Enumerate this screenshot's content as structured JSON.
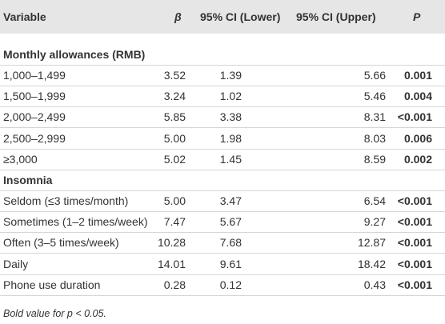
{
  "table": {
    "header": [
      "Variable",
      "β",
      "95% CI (Lower)",
      "95% CI (Upper)",
      "P"
    ],
    "sections": [
      {
        "title": "Monthly allowances (RMB)",
        "rows": [
          [
            "1,000–1,499",
            "3.52",
            "1.39",
            "5.66",
            "0.001"
          ],
          [
            "1,500–1,999",
            "3.24",
            "1.02",
            "5.46",
            "0.004"
          ],
          [
            "2,000–2,499",
            "5.85",
            "3.38",
            "8.31",
            "<0.001"
          ],
          [
            "2,500–2,999",
            "5.00",
            "1.98",
            "8.03",
            "0.006"
          ],
          [
            "≥3,000",
            "5.02",
            "1.45",
            "8.59",
            "0.002"
          ]
        ]
      },
      {
        "title": "Insomnia",
        "rows": [
          [
            "Seldom (≤3 times/month)",
            "5.00",
            "3.47",
            "6.54",
            "<0.001"
          ],
          [
            "Sometimes (1–2 times/week)",
            "7.47",
            "5.67",
            "9.27",
            "<0.001"
          ],
          [
            "Often (3–5 times/week)",
            "10.28",
            "7.68",
            "12.87",
            "<0.001"
          ],
          [
            "Daily",
            "14.01",
            "9.61",
            "18.42",
            "<0.001"
          ],
          [
            "Phone use duration",
            "0.28",
            "0.12",
            "0.43",
            "<0.001"
          ]
        ]
      }
    ],
    "footnote": "Bold value for p < 0.05."
  }
}
